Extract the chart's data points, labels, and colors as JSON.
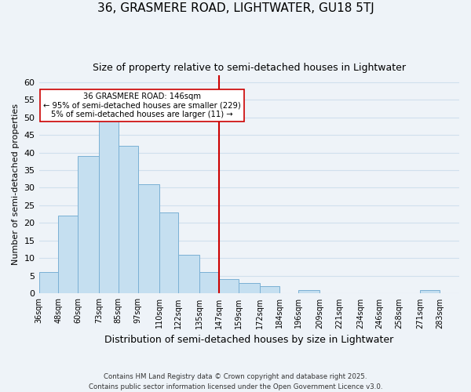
{
  "title": "36, GRASMERE ROAD, LIGHTWATER, GU18 5TJ",
  "subtitle": "Size of property relative to semi-detached houses in Lightwater",
  "xlabel": "Distribution of semi-detached houses by size in Lightwater",
  "ylabel": "Number of semi-detached properties",
  "bin_labels": [
    "36sqm",
    "48sqm",
    "60sqm",
    "73sqm",
    "85sqm",
    "97sqm",
    "110sqm",
    "122sqm",
    "135sqm",
    "147sqm",
    "159sqm",
    "172sqm",
    "184sqm",
    "196sqm",
    "209sqm",
    "221sqm",
    "234sqm",
    "246sqm",
    "258sqm",
    "271sqm",
    "283sqm"
  ],
  "bin_edges": [
    36,
    48,
    60,
    73,
    85,
    97,
    110,
    122,
    135,
    147,
    159,
    172,
    184,
    196,
    209,
    221,
    234,
    246,
    258,
    271,
    283,
    295
  ],
  "counts": [
    6,
    22,
    39,
    49,
    42,
    31,
    23,
    11,
    6,
    4,
    3,
    2,
    0,
    1,
    0,
    0,
    0,
    0,
    0,
    1,
    0
  ],
  "bar_color": "#c5dff0",
  "bar_edge_color": "#7ab0d4",
  "vline_x": 147,
  "vline_color": "#cc0000",
  "annotation_title": "36 GRASMERE ROAD: 146sqm",
  "annotation_line1": "← 95% of semi-detached houses are smaller (229)",
  "annotation_line2": "5% of semi-detached houses are larger (11) →",
  "annotation_box_color": "white",
  "annotation_box_edge": "#cc0000",
  "ylim": [
    0,
    62
  ],
  "yticks": [
    0,
    5,
    10,
    15,
    20,
    25,
    30,
    35,
    40,
    45,
    50,
    55,
    60
  ],
  "grid_color": "#d0e0ed",
  "background_color": "#eef3f8",
  "footer_line1": "Contains HM Land Registry data © Crown copyright and database right 2025.",
  "footer_line2": "Contains public sector information licensed under the Open Government Licence v3.0."
}
